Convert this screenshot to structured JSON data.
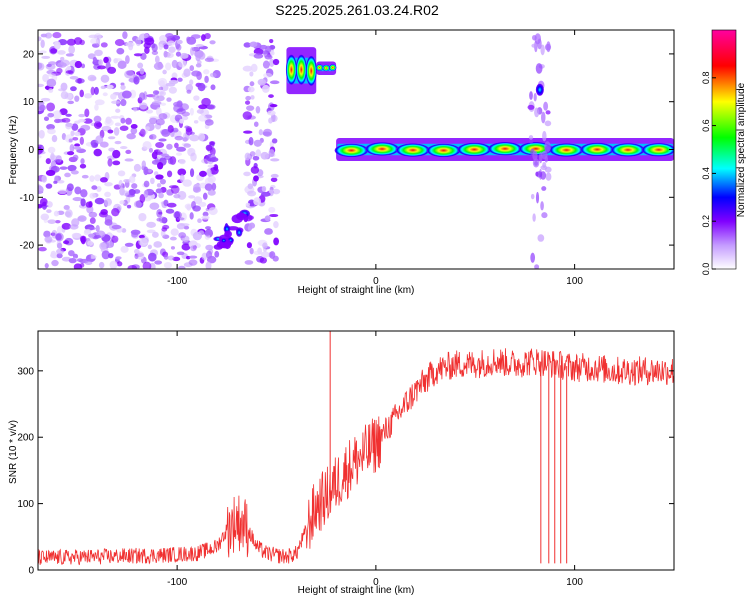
{
  "title": "S225.2025.261.03.24.R02",
  "chart_data": [
    {
      "type": "heatmap",
      "xlabel": "Height of straight line (km)",
      "ylabel": "Frequency (Hz)",
      "xlim": [
        -170,
        150
      ],
      "ylim": [
        -25,
        25
      ],
      "xticks": [
        -100,
        0,
        100
      ],
      "yticks": [
        -20,
        -10,
        0,
        10,
        20
      ],
      "colorbar": {
        "label": "Normalized spectral amplitude",
        "range": [
          0,
          1
        ],
        "ticks": [
          "0.0",
          "0.2",
          "0.4",
          "0.6",
          "0.8"
        ],
        "colormap": [
          "#ffffff",
          "#8000ff",
          "#0000ff",
          "#00ffff",
          "#00ff00",
          "#ffff00",
          "#ff0000",
          "#ff00ff"
        ]
      },
      "features": [
        {
          "x": [
            -170,
            -80
          ],
          "y": [
            -25,
            24
          ],
          "amplitude": 0.15,
          "kind": "scattered noise"
        },
        {
          "x": [
            -65,
            -50
          ],
          "y": [
            -25,
            24
          ],
          "amplitude": 0.12,
          "kind": "scattered noise"
        },
        {
          "x": [
            -45,
            -30
          ],
          "y": [
            12,
            21
          ],
          "amplitude": 0.95,
          "kind": "track"
        },
        {
          "x": [
            -30,
            -20
          ],
          "y": [
            16,
            18
          ],
          "amplitude": 0.9,
          "kind": "track"
        },
        {
          "x": [
            -80,
            -65
          ],
          "y": [
            -22,
            -12
          ],
          "amplitude": 0.5,
          "kind": "blob"
        },
        {
          "x": [
            -20,
            150
          ],
          "y": [
            -2,
            2
          ],
          "amplitude": 0.95,
          "kind": "track"
        },
        {
          "x": [
            78,
            87
          ],
          "y": [
            -25,
            24
          ],
          "amplitude": 0.35,
          "kind": "vertical stripe"
        }
      ]
    },
    {
      "type": "line",
      "xlabel": "Height of straight line (km)",
      "ylabel": "SNR (10 * v/v)",
      "xlim": [
        -170,
        150
      ],
      "ylim": [
        0,
        360
      ],
      "xticks": [
        -100,
        0,
        100
      ],
      "yticks": [
        0,
        100,
        200,
        300
      ],
      "color": "#f03030",
      "series": [
        {
          "x": [
            -170,
            -140,
            -110,
            -90,
            -80,
            -75,
            -70,
            -65,
            -60,
            -55,
            -50,
            -45,
            -40,
            -35,
            -30,
            -25,
            -20,
            -15,
            -10,
            -5,
            0,
            5,
            10,
            15,
            20,
            25,
            30,
            40,
            50,
            60,
            70,
            80,
            90,
            100,
            110,
            120,
            130,
            140,
            150
          ],
          "y": [
            18,
            20,
            22,
            25,
            35,
            60,
            75,
            65,
            35,
            25,
            22,
            20,
            25,
            60,
            95,
            110,
            130,
            150,
            165,
            175,
            190,
            210,
            230,
            250,
            270,
            285,
            300,
            310,
            310,
            315,
            310,
            315,
            310,
            305,
            305,
            300,
            300,
            300,
            300
          ]
        }
      ],
      "spikes": [
        {
          "x": -23,
          "y": 360
        },
        {
          "x": 83,
          "y": 10
        },
        {
          "x": 87,
          "y": 10
        },
        {
          "x": 90,
          "y": 10
        },
        {
          "x": 93,
          "y": 10
        },
        {
          "x": 96,
          "y": 10
        }
      ]
    }
  ]
}
